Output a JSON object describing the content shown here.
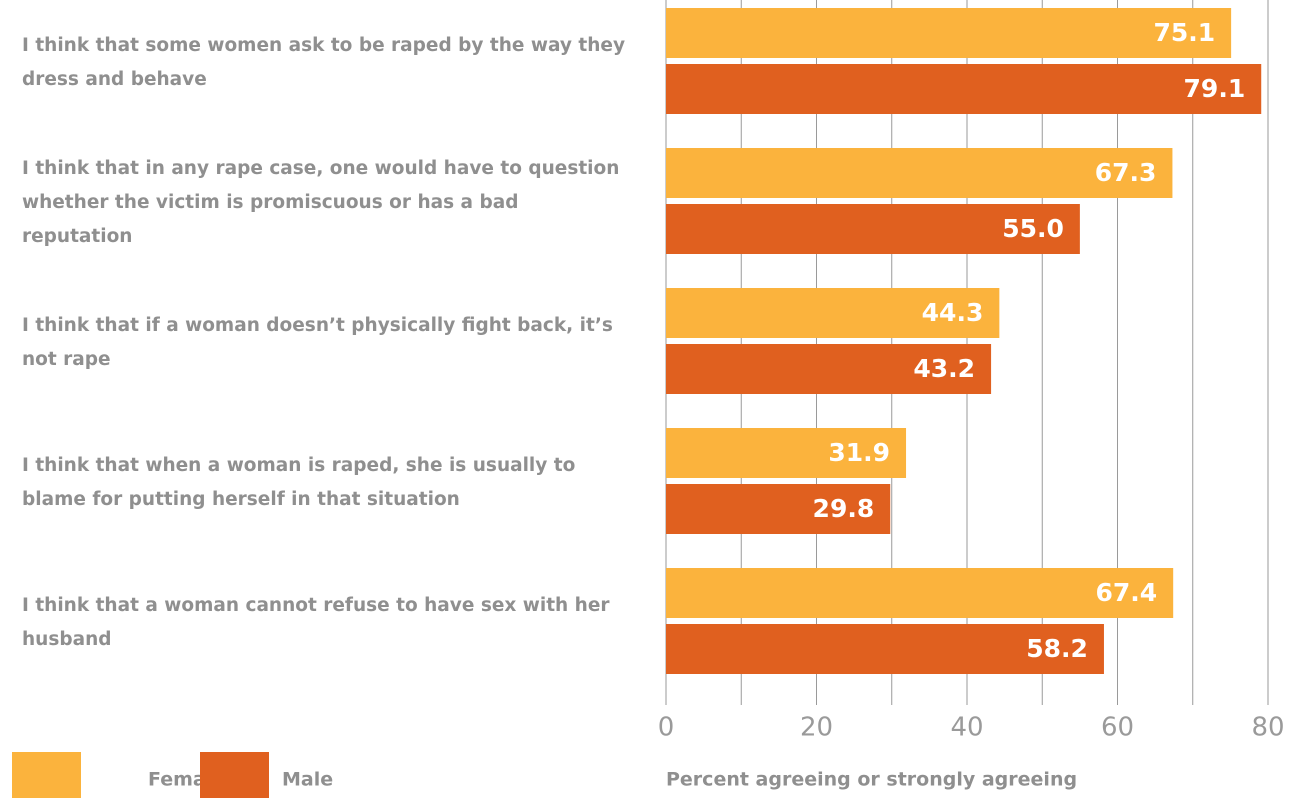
{
  "chart_data": {
    "type": "hbar",
    "categories": [
      "I think that some women ask to be raped by the way they dress and behave",
      "I think that in any rape case, one would have to question whether the victim is promiscuous or has a bad reputation",
      "I think that if a woman doesn’t physically fight back, it’s not rape",
      "I think that when a woman is raped, she is usually to blame for putting herself in that situation",
      "I think that a woman cannot refuse to have sex with her husband"
    ],
    "series": [
      {
        "name": "Female",
        "color": "#fbb33d",
        "values": [
          75.1,
          67.3,
          44.3,
          31.9,
          67.4
        ],
        "value_labels": [
          "75.1",
          "67.3",
          "44.3",
          "31.9",
          "67.4"
        ]
      },
      {
        "name": "Male",
        "color": "#e0601f",
        "values": [
          79.1,
          55.0,
          43.2,
          29.8,
          58.2
        ],
        "value_labels": [
          "79.1",
          "55.0",
          "43.2",
          "29.8",
          "58.2"
        ]
      }
    ],
    "xlabel": "Percent agreeing or strongly agreeing",
    "xlim": [
      0,
      80
    ],
    "xticks": [
      0,
      20,
      40,
      60,
      80
    ],
    "minor_xticks": [
      10,
      30,
      50,
      70
    ],
    "grid": true,
    "legend": "bottom-left"
  }
}
